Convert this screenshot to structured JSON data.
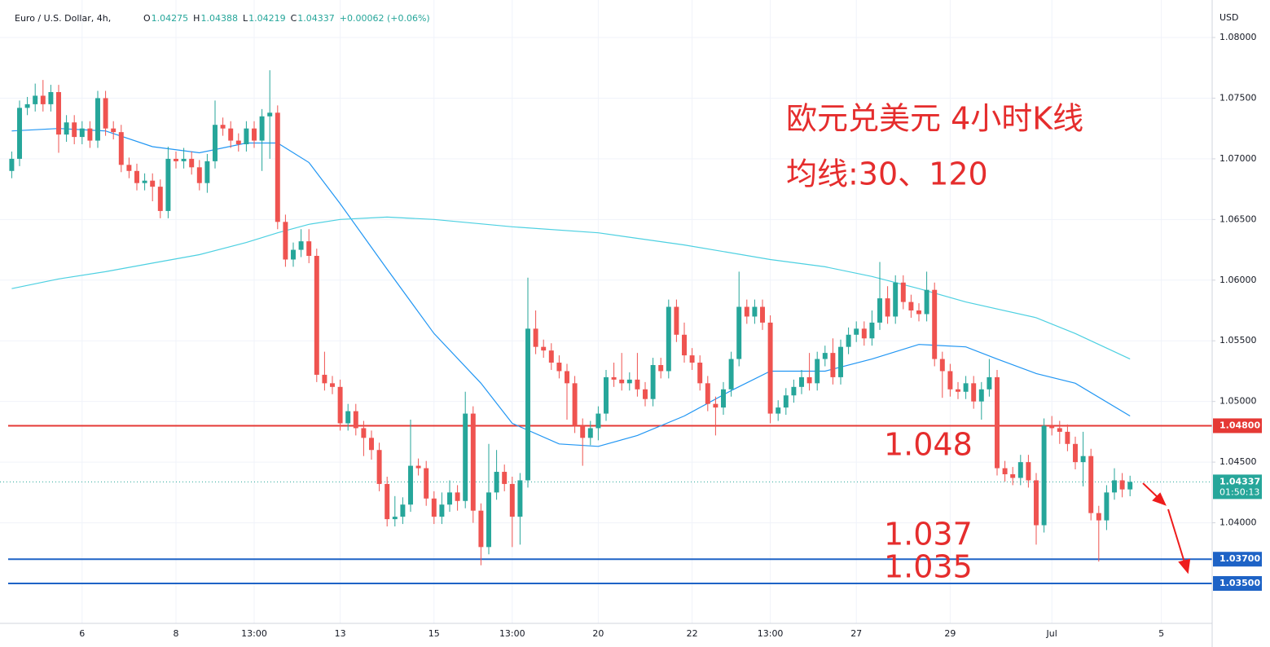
{
  "chart_data": {
    "type": "candlestick",
    "title": "Euro / U.S. Dollar, 4h,",
    "legend_values": [
      {
        "label": "O",
        "value": 1.04275
      },
      {
        "label": "H",
        "value": 1.04388
      },
      {
        "label": "L",
        "value": 1.04219
      },
      {
        "label": "C",
        "value": 1.04337
      }
    ],
    "change": "+0.00062 (+0.06%)",
    "currency": "USD",
    "colors": {
      "up": "#26a69a",
      "down": "#ef5350"
    },
    "open": [
      1.069,
      1.07,
      1.0742,
      1.0745,
      1.0752,
      1.0745,
      1.0755,
      1.072,
      1.073,
      1.0718,
      1.0725,
      1.0715,
      1.075,
      1.0725,
      1.0722,
      1.0695,
      1.069,
      1.068,
      1.0682,
      1.0677,
      1.0657,
      1.07,
      1.0698,
      1.07,
      1.0693,
      1.068,
      1.0698,
      1.0728,
      1.0725,
      1.0715,
      1.0712,
      1.0725,
      1.0715,
      1.0735,
      1.0738,
      1.0648,
      1.0617,
      1.0625,
      1.0632,
      1.062,
      1.0522,
      1.0515,
      1.0512,
      1.0482,
      1.0492,
      1.0478,
      1.047,
      1.046,
      1.0432,
      1.0403,
      1.0405,
      1.0415,
      1.0447,
      1.0445,
      1.042,
      1.0405,
      1.0415,
      1.0425,
      1.0418,
      1.049,
      1.041,
      1.038,
      1.0425,
      1.0442,
      1.0432,
      1.0405,
      1.0435,
      1.056,
      1.0545,
      1.0542,
      1.0532,
      1.0525,
      1.0515,
      1.048,
      1.047,
      1.0478,
      1.049,
      1.052,
      1.0518,
      1.0515,
      1.0518,
      1.051,
      1.0502,
      1.053,
      1.0525,
      1.0578,
      1.0555,
      1.0538,
      1.0532,
      1.0515,
      1.0498,
      1.0495,
      1.051,
      1.0535,
      1.0578,
      1.057,
      1.0578,
      1.0565,
      1.049,
      1.0495,
      1.0505,
      1.0512,
      1.052,
      1.0515,
      1.0535,
      1.054,
      1.052,
      1.0545,
      1.0555,
      1.056,
      1.0552,
      1.0565,
      1.0585,
      1.057,
      1.0598,
      1.0582,
      1.0575,
      1.0572,
      1.0592,
      1.0535,
      1.0525,
      1.051,
      1.0508,
      1.0515,
      1.05,
      1.051,
      1.052,
      1.0445,
      1.044,
      1.0437,
      1.045,
      1.0435,
      1.0398,
      1.048,
      1.0478,
      1.0475,
      1.0465,
      1.045,
      1.0455,
      1.0408,
      1.0402,
      1.0425,
      1.0435,
      1.04275
    ],
    "high": [
      1.0706,
      1.0748,
      1.0751,
      1.0762,
      1.0765,
      1.0761,
      1.0761,
      1.0736,
      1.0736,
      1.0731,
      1.0731,
      1.0756,
      1.0756,
      1.0731,
      1.0728,
      1.0701,
      1.0696,
      1.0688,
      1.0688,
      1.0683,
      1.071,
      1.0706,
      1.0709,
      1.0706,
      1.0699,
      1.0704,
      1.0748,
      1.0734,
      1.0731,
      1.0721,
      1.0731,
      1.0731,
      1.0741,
      1.0773,
      1.0744,
      1.0654,
      1.0631,
      1.0642,
      1.0642,
      1.0626,
      1.0541,
      1.0521,
      1.0518,
      1.0498,
      1.0498,
      1.0484,
      1.0476,
      1.0466,
      1.0438,
      1.0422,
      1.0421,
      1.0485,
      1.0453,
      1.0451,
      1.0426,
      1.0425,
      1.0435,
      1.0431,
      1.0508,
      1.0496,
      1.0416,
      1.0465,
      1.046,
      1.0448,
      1.0438,
      1.0441,
      1.0602,
      1.0575,
      1.0551,
      1.0548,
      1.0538,
      1.0531,
      1.0521,
      1.0486,
      1.0484,
      1.0496,
      1.0526,
      1.0532,
      1.054,
      1.0524,
      1.054,
      1.0516,
      1.0536,
      1.0536,
      1.0584,
      1.0584,
      1.0565,
      1.0544,
      1.0538,
      1.0521,
      1.0504,
      1.0516,
      1.0541,
      1.0607,
      1.0584,
      1.0584,
      1.0584,
      1.0571,
      1.0501,
      1.0511,
      1.0518,
      1.0526,
      1.054,
      1.0541,
      1.0546,
      1.0552,
      1.0551,
      1.0561,
      1.0566,
      1.0566,
      1.0575,
      1.0615,
      1.0595,
      1.0604,
      1.0604,
      1.0588,
      1.0581,
      1.0607,
      1.0598,
      1.0541,
      1.0531,
      1.0516,
      1.0521,
      1.0521,
      1.0516,
      1.0535,
      1.0526,
      1.0451,
      1.0446,
      1.0456,
      1.0456,
      1.0441,
      1.0486,
      1.0488,
      1.0484,
      1.0481,
      1.0471,
      1.0475,
      1.0461,
      1.0414,
      1.0431,
      1.0445,
      1.0441,
      1.04388
    ],
    "low": [
      1.0684,
      1.0694,
      1.0736,
      1.0739,
      1.0739,
      1.0739,
      1.0705,
      1.0714,
      1.0712,
      1.0712,
      1.0709,
      1.0709,
      1.0719,
      1.0716,
      1.0689,
      1.0684,
      1.0674,
      1.0674,
      1.0665,
      1.0651,
      1.0651,
      1.0692,
      1.0692,
      1.0687,
      1.0674,
      1.0672,
      1.0692,
      1.0719,
      1.0709,
      1.0706,
      1.0706,
      1.0709,
      1.069,
      1.07,
      1.0642,
      1.0611,
      1.0611,
      1.0619,
      1.0614,
      1.0516,
      1.0509,
      1.0506,
      1.0476,
      1.0476,
      1.0472,
      1.0455,
      1.0452,
      1.0426,
      1.0397,
      1.0397,
      1.0399,
      1.0409,
      1.0439,
      1.0414,
      1.0399,
      1.0399,
      1.0409,
      1.041,
      1.0412,
      1.04,
      1.0365,
      1.0374,
      1.0419,
      1.0426,
      1.038,
      1.0382,
      1.0429,
      1.0539,
      1.0536,
      1.0526,
      1.0519,
      1.0485,
      1.0474,
      1.0447,
      1.0464,
      1.0468,
      1.0484,
      1.0512,
      1.0509,
      1.0509,
      1.0504,
      1.0496,
      1.0496,
      1.0519,
      1.0519,
      1.0549,
      1.0532,
      1.0526,
      1.0509,
      1.0492,
      1.0472,
      1.0489,
      1.0504,
      1.0529,
      1.0564,
      1.0564,
      1.0559,
      1.0482,
      1.0484,
      1.0489,
      1.0499,
      1.0506,
      1.0509,
      1.0509,
      1.0529,
      1.0514,
      1.0514,
      1.0539,
      1.0549,
      1.0546,
      1.0546,
      1.0559,
      1.0564,
      1.0564,
      1.0576,
      1.0569,
      1.0566,
      1.0566,
      1.0529,
      1.0503,
      1.0504,
      1.0502,
      1.0502,
      1.0494,
      1.0485,
      1.0504,
      1.0439,
      1.0434,
      1.0431,
      1.0431,
      1.0429,
      1.0382,
      1.0392,
      1.0472,
      1.0465,
      1.0459,
      1.0444,
      1.043,
      1.0402,
      1.0368,
      1.0394,
      1.0419,
      1.0421,
      1.04219
    ],
    "close": [
      1.07,
      1.0742,
      1.0745,
      1.0752,
      1.0745,
      1.0755,
      1.072,
      1.073,
      1.0718,
      1.0725,
      1.0715,
      1.075,
      1.0725,
      1.0722,
      1.0695,
      1.069,
      1.068,
      1.0682,
      1.0677,
      1.0657,
      1.07,
      1.0698,
      1.07,
      1.0693,
      1.068,
      1.0698,
      1.0728,
      1.0725,
      1.0715,
      1.0712,
      1.0725,
      1.0715,
      1.0735,
      1.0738,
      1.0648,
      1.0617,
      1.0625,
      1.0632,
      1.062,
      1.0522,
      1.0515,
      1.0512,
      1.0482,
      1.0492,
      1.0478,
      1.047,
      1.046,
      1.0432,
      1.0403,
      1.0405,
      1.0415,
      1.0447,
      1.0445,
      1.042,
      1.0405,
      1.0415,
      1.0425,
      1.0418,
      1.049,
      1.041,
      1.038,
      1.0425,
      1.0442,
      1.0432,
      1.0405,
      1.0435,
      1.056,
      1.0545,
      1.0542,
      1.0532,
      1.0525,
      1.0515,
      1.048,
      1.047,
      1.0478,
      1.049,
      1.052,
      1.0518,
      1.0515,
      1.0518,
      1.051,
      1.0502,
      1.053,
      1.0525,
      1.0578,
      1.0555,
      1.0538,
      1.0532,
      1.0515,
      1.0498,
      1.0495,
      1.051,
      1.0535,
      1.0578,
      1.057,
      1.0578,
      1.0565,
      1.049,
      1.0495,
      1.0505,
      1.0512,
      1.052,
      1.0515,
      1.0535,
      1.054,
      1.052,
      1.0545,
      1.0555,
      1.056,
      1.0552,
      1.0565,
      1.0585,
      1.057,
      1.0598,
      1.0582,
      1.0575,
      1.0572,
      1.0592,
      1.0535,
      1.0525,
      1.051,
      1.0508,
      1.0515,
      1.05,
      1.051,
      1.052,
      1.0445,
      1.044,
      1.0437,
      1.045,
      1.0435,
      1.0398,
      1.048,
      1.0478,
      1.0475,
      1.0465,
      1.045,
      1.0455,
      1.0408,
      1.0402,
      1.0425,
      1.0435,
      1.04275,
      1.04337
    ],
    "xlim": [
      -1.5,
      153.5
    ],
    "xticks": [
      {
        "value": 9,
        "label": "6"
      },
      {
        "value": 21,
        "label": "8"
      },
      {
        "value": 31,
        "label": "13:00"
      },
      {
        "value": 42,
        "label": "13"
      },
      {
        "value": 54,
        "label": "15"
      },
      {
        "value": 64,
        "label": "13:00"
      },
      {
        "value": 75,
        "label": "20"
      },
      {
        "value": 87,
        "label": "22"
      },
      {
        "value": 97,
        "label": "13:00"
      },
      {
        "value": 108,
        "label": "27"
      },
      {
        "value": 120,
        "label": "29"
      },
      {
        "value": 133,
        "label": "Jul"
      },
      {
        "value": 147,
        "label": "5"
      }
    ],
    "ylim": [
      1.03171,
      1.08309
    ],
    "yticks": [
      {
        "value": 1.08,
        "label": "1.08000"
      },
      {
        "value": 1.075,
        "label": "1.07500"
      },
      {
        "value": 1.07,
        "label": "1.07000"
      },
      {
        "value": 1.065,
        "label": "1.06500"
      },
      {
        "value": 1.06,
        "label": "1.06000"
      },
      {
        "value": 1.055,
        "label": "1.05500"
      },
      {
        "value": 1.05,
        "label": "1.05000"
      },
      {
        "value": 1.045,
        "label": "1.04500"
      },
      {
        "value": 1.04,
        "label": "1.04000"
      }
    ],
    "grid": true,
    "moving_averages": [
      {
        "color": "#2196f3",
        "x": [
          0,
          6,
          12,
          18,
          24,
          30,
          34,
          38,
          42,
          48,
          54,
          60,
          64,
          70,
          75,
          80,
          86,
          92,
          97,
          104,
          110,
          116,
          122,
          126,
          131,
          136,
          143
        ],
        "values": [
          1.0723,
          1.0725,
          1.0723,
          1.071,
          1.0705,
          1.0713,
          1.0713,
          1.0697,
          1.0663,
          1.0609,
          1.0556,
          1.0515,
          1.0482,
          1.0465,
          1.0463,
          1.0472,
          1.0488,
          1.0509,
          1.0525,
          1.0525,
          1.0535,
          1.0547,
          1.0545,
          1.0535,
          1.0523,
          1.0515,
          1.0488
        ]
      },
      {
        "color": "#4dd0e1",
        "x": [
          0,
          6,
          12,
          18,
          24,
          30,
          34,
          38,
          42,
          48,
          54,
          64,
          75,
          86,
          97,
          104,
          110,
          116,
          122,
          131,
          136,
          143
        ],
        "values": [
          1.0593,
          1.0601,
          1.0607,
          1.0614,
          1.0621,
          1.0631,
          1.0639,
          1.0646,
          1.065,
          1.0652,
          1.065,
          1.0644,
          1.0639,
          1.0629,
          1.0617,
          1.0611,
          1.0603,
          1.0593,
          1.0582,
          1.0569,
          1.0556,
          1.0535
        ]
      }
    ],
    "levels": [
      {
        "value": 1.048,
        "label": "1.04800",
        "color": "#e53935"
      },
      {
        "value": 1.037,
        "label": "1.03700",
        "color": "#1e63c6"
      },
      {
        "value": 1.035,
        "label": "1.03500",
        "color": "#1e63c6"
      }
    ],
    "last_price": {
      "value": 1.04337,
      "label": "1.04337",
      "countdown": "01:50:13",
      "color": "#26a69a"
    },
    "annotations": [
      {
        "text": "欧元兑美元 4小时K线"
      },
      {
        "text": "均线:30、120"
      },
      {
        "text": 1.048
      },
      {
        "text": 1.037
      },
      {
        "text": 1.035
      }
    ]
  }
}
